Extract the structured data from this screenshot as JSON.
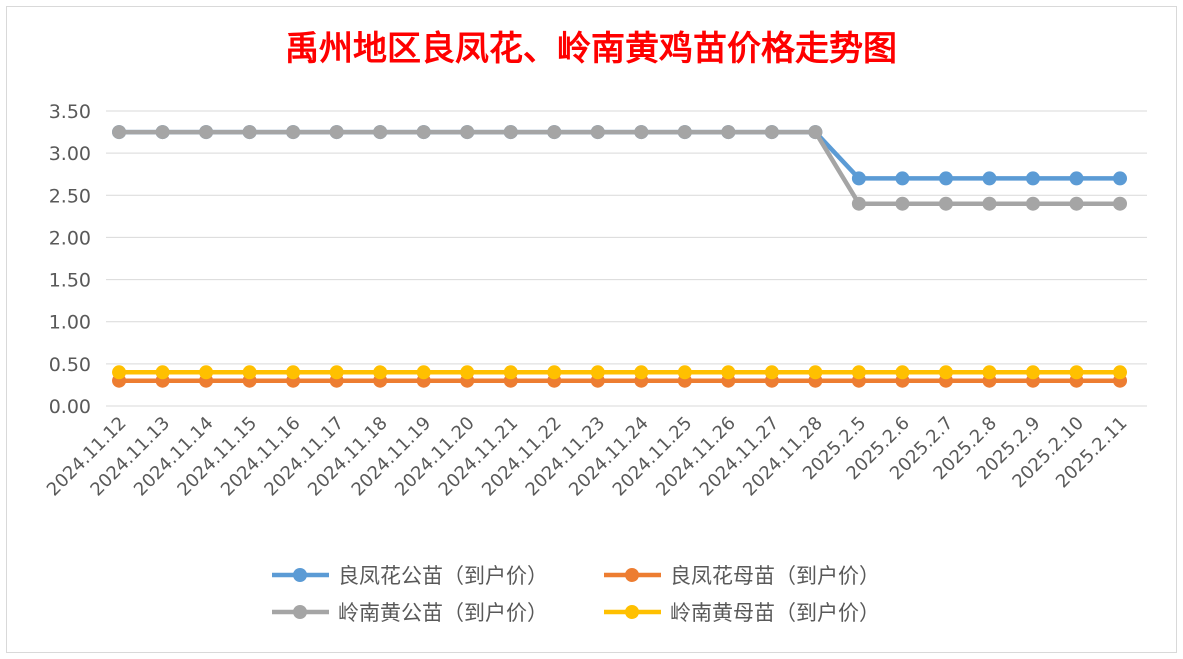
{
  "chart_data": {
    "type": "line",
    "title": "禹州地区良凤花、岭南黄鸡苗价格走势图",
    "xlabel": "",
    "ylabel": "",
    "ylim": [
      0,
      3.5
    ],
    "yticks": [
      "0.00",
      "0.50",
      "1.00",
      "1.50",
      "2.00",
      "2.50",
      "3.00",
      "3.50"
    ],
    "grid": true,
    "legend_position": "bottom",
    "categories": [
      "2024.11.12",
      "2024.11.13",
      "2024.11.14",
      "2024.11.15",
      "2024.11.16",
      "2024.11.17",
      "2024.11.18",
      "2024.11.19",
      "2024.11.20",
      "2024.11.21",
      "2024.11.22",
      "2024.11.23",
      "2024.11.24",
      "2024.11.25",
      "2024.11.26",
      "2024.11.27",
      "2024.11.28",
      "2025.2.5",
      "2025.2.6",
      "2025.2.7",
      "2025.2.8",
      "2025.2.9",
      "2025.2.10",
      "2025.2.11"
    ],
    "series": [
      {
        "name": "良凤花公苗（到户价）",
        "color": "#5b9bd5",
        "values": [
          3.25,
          3.25,
          3.25,
          3.25,
          3.25,
          3.25,
          3.25,
          3.25,
          3.25,
          3.25,
          3.25,
          3.25,
          3.25,
          3.25,
          3.25,
          3.25,
          3.25,
          2.7,
          2.7,
          2.7,
          2.7,
          2.7,
          2.7,
          2.7
        ]
      },
      {
        "name": "良凤花母苗（到户价）",
        "color": "#ed7d31",
        "values": [
          0.3,
          0.3,
          0.3,
          0.3,
          0.3,
          0.3,
          0.3,
          0.3,
          0.3,
          0.3,
          0.3,
          0.3,
          0.3,
          0.3,
          0.3,
          0.3,
          0.3,
          0.3,
          0.3,
          0.3,
          0.3,
          0.3,
          0.3,
          0.3
        ]
      },
      {
        "name": "岭南黄公苗（到户价）",
        "color": "#a5a5a5",
        "values": [
          3.25,
          3.25,
          3.25,
          3.25,
          3.25,
          3.25,
          3.25,
          3.25,
          3.25,
          3.25,
          3.25,
          3.25,
          3.25,
          3.25,
          3.25,
          3.25,
          3.25,
          2.4,
          2.4,
          2.4,
          2.4,
          2.4,
          2.4,
          2.4
        ]
      },
      {
        "name": "岭南黄母苗（到户价）",
        "color": "#ffc000",
        "values": [
          0.4,
          0.4,
          0.4,
          0.4,
          0.4,
          0.4,
          0.4,
          0.4,
          0.4,
          0.4,
          0.4,
          0.4,
          0.4,
          0.4,
          0.4,
          0.4,
          0.4,
          0.4,
          0.4,
          0.4,
          0.4,
          0.4,
          0.4,
          0.4
        ]
      }
    ],
    "title_color": "#ff0000",
    "gridline_color": "#d9d9d9",
    "tick_label_color": "#595959"
  }
}
